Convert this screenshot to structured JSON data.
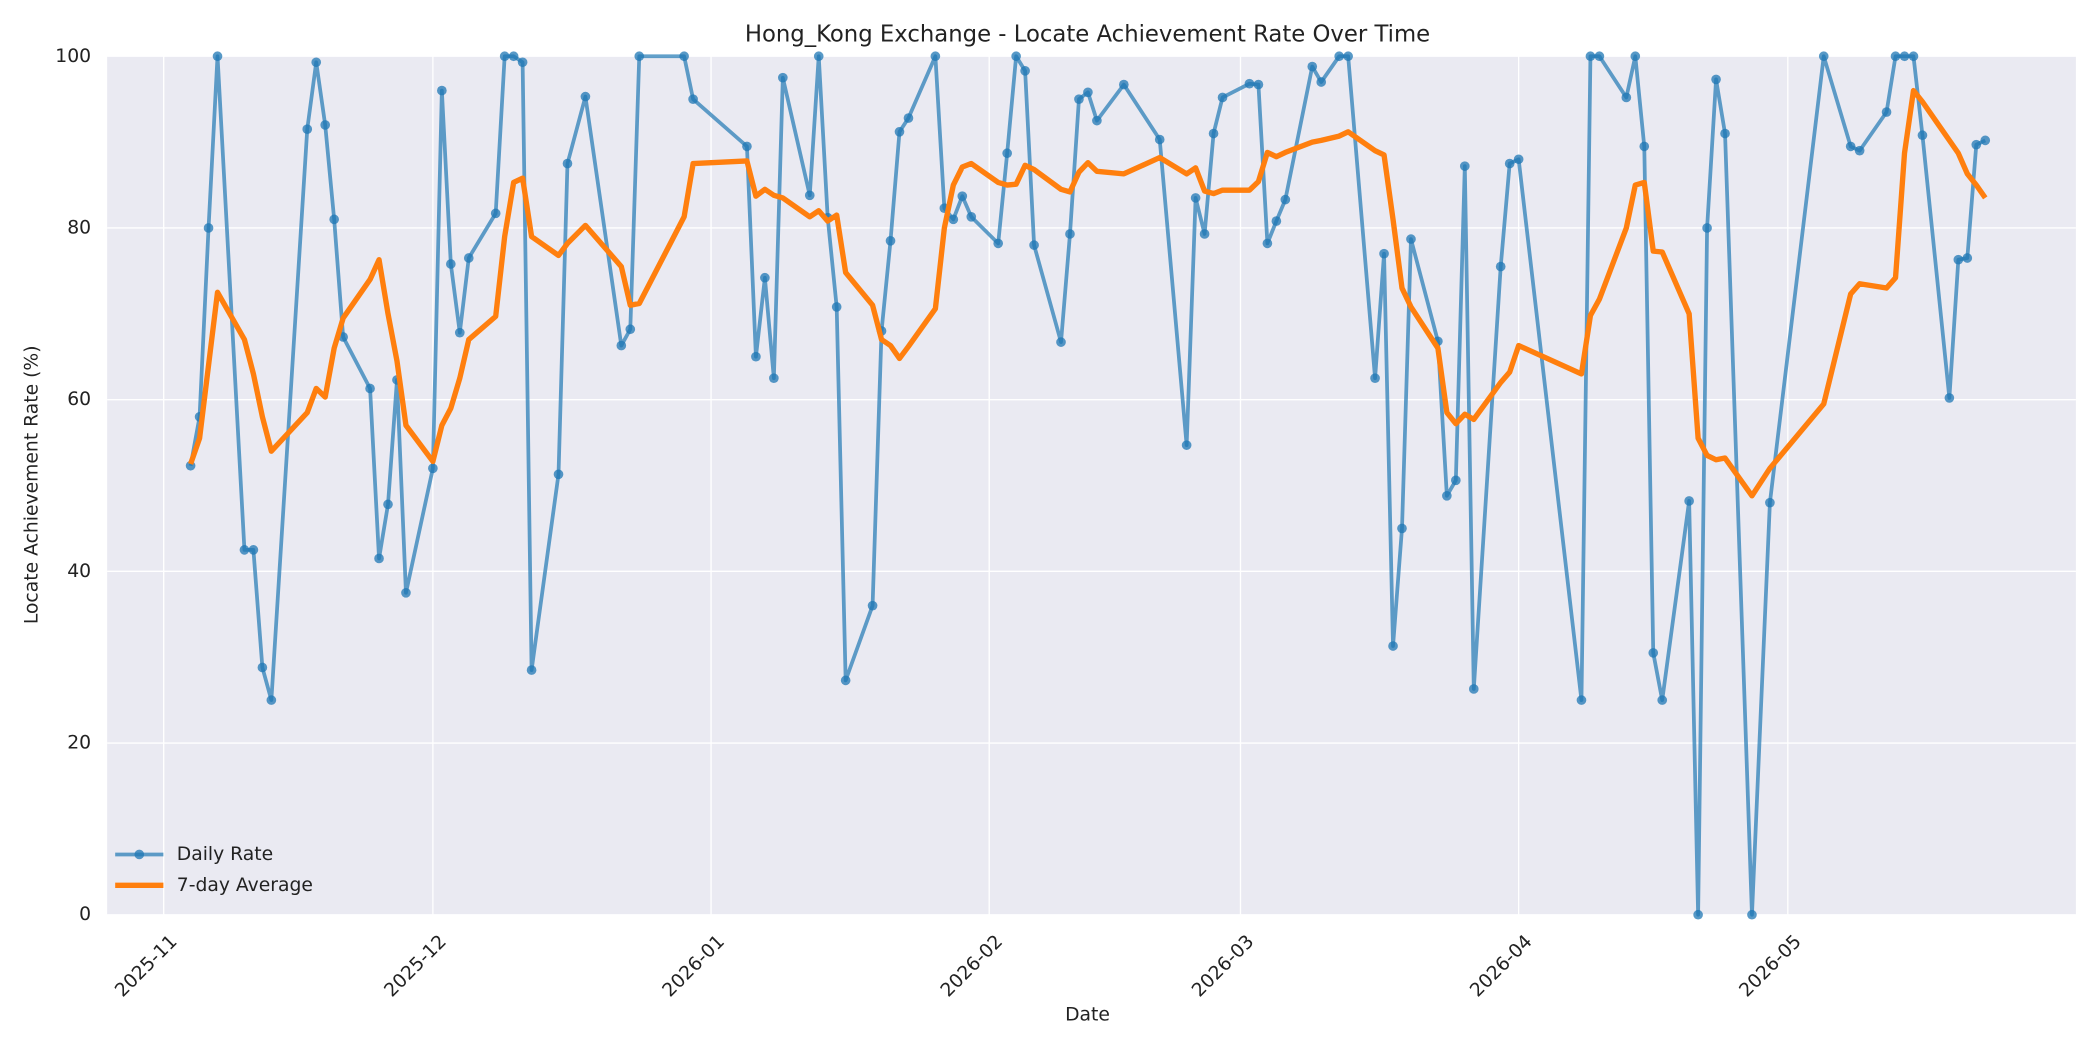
{
  "chart_data": {
    "type": "line",
    "title": "Hong_Kong Exchange - Locate Achievement Rate Over Time",
    "xlabel": "Date",
    "ylabel": "Locate Achievement Rate (%)",
    "x": [
      3,
      4,
      5,
      6,
      9,
      10,
      11,
      12,
      16,
      17,
      18,
      19,
      20,
      23,
      24,
      25,
      26,
      27,
      30,
      31,
      32,
      33,
      34,
      37,
      38,
      39,
      40,
      41,
      44,
      45,
      47,
      51,
      52,
      53,
      58,
      59,
      65,
      66,
      67,
      68,
      69,
      72,
      73,
      74,
      75,
      76,
      79,
      80,
      81,
      82,
      83,
      86,
      87,
      88,
      89,
      90,
      93,
      94,
      95,
      96,
      97,
      100,
      101,
      102,
      103,
      104,
      107,
      111,
      114,
      115,
      116,
      117,
      118,
      121,
      122,
      123,
      124,
      125,
      128,
      129,
      131,
      132,
      135,
      136,
      137,
      138,
      139,
      142,
      143,
      144,
      145,
      146,
      149,
      150,
      151,
      158,
      159,
      160,
      163,
      164,
      165,
      166,
      167,
      170,
      171,
      172,
      173,
      174,
      177,
      179,
      185,
      188,
      189,
      192,
      193,
      194,
      195,
      196,
      199,
      200,
      201,
      202,
      203
    ],
    "series": [
      {
        "name": "Daily Rate",
        "color": "#1f77b4",
        "markers": true,
        "values": [
          52.3,
          58,
          80,
          100,
          42.5,
          42.5,
          28.8,
          25,
          91.5,
          99.3,
          92,
          81,
          67.3,
          61.3,
          41.5,
          47.8,
          62.3,
          37.5,
          52,
          96,
          75.8,
          67.8,
          76.5,
          81.7,
          100,
          100,
          99.3,
          28.5,
          51.3,
          87.5,
          95.3,
          66.3,
          68.2,
          100,
          100,
          95,
          89.5,
          65,
          74.2,
          62.5,
          97.5,
          83.8,
          100,
          81.2,
          70.8,
          27.3,
          36,
          68,
          78.5,
          91.2,
          92.8,
          100,
          82.3,
          81,
          83.7,
          81.3,
          78.2,
          88.7,
          100,
          98.3,
          78,
          66.7,
          79.3,
          95,
          95.8,
          92.5,
          96.7,
          90.3,
          54.7,
          83.5,
          79.3,
          91,
          95.2,
          96.8,
          96.7,
          78.2,
          80.8,
          83.3,
          98.8,
          97,
          100,
          100,
          62.5,
          77,
          31.3,
          45,
          78.7,
          66.8,
          48.8,
          50.6,
          87.2,
          26.3,
          75.5,
          87.5,
          88,
          25,
          100,
          100,
          95.2,
          100,
          89.5,
          30.5,
          25,
          48.2,
          0,
          80,
          97.3,
          91,
          0,
          48,
          100,
          89.5,
          89,
          93.5,
          100,
          100,
          100,
          90.8,
          60.2,
          76.3,
          76.5,
          89.7,
          90.2
        ]
      },
      {
        "name": "7-day Average",
        "color": "#ff7f0e",
        "markers": false,
        "values": [
          52.5,
          55.5,
          64,
          72.5,
          67,
          63,
          58,
          54,
          58.5,
          61.3,
          60.3,
          66,
          69.5,
          74,
          76.3,
          70,
          64.5,
          57,
          52.8,
          57,
          59,
          62.5,
          67,
          69.7,
          79,
          85.3,
          85.8,
          79,
          76.8,
          78.2,
          80.3,
          75.5,
          71,
          71.2,
          81.3,
          87.5,
          87.8,
          83.7,
          84.5,
          83.8,
          83.5,
          81.3,
          82,
          80.8,
          81.5,
          74.8,
          71,
          67,
          66.3,
          64.8,
          66.2,
          70.6,
          80,
          85,
          87.1,
          87.5,
          85.3,
          85,
          85.1,
          87.3,
          86.8,
          84.5,
          84.2,
          86.5,
          87.6,
          86.6,
          86.3,
          88.2,
          86.3,
          87,
          84.3,
          84,
          84.4,
          84.4,
          85.4,
          88.8,
          88.3,
          88.8,
          90,
          90.2,
          90.7,
          91.2,
          89,
          88.5,
          81,
          73,
          70.8,
          66,
          58.5,
          57.2,
          58.3,
          57.7,
          62,
          63.2,
          66.3,
          63,
          69.8,
          71.7,
          80,
          85,
          85.3,
          77.3,
          77.2,
          70,
          55.5,
          53.5,
          53,
          53.2,
          48.8,
          52,
          59.5,
          72.3,
          73.5,
          73,
          74.2,
          88.7,
          96,
          94.7,
          90.2,
          88.7,
          86.3,
          85,
          83.5
        ]
      }
    ],
    "xlim": [
      -6.3,
      213.1
    ],
    "xticks": [
      {
        "value": 0,
        "label": "2025-11"
      },
      {
        "value": 30,
        "label": "2025-12"
      },
      {
        "value": 61,
        "label": "2026-01"
      },
      {
        "value": 92,
        "label": "2026-02"
      },
      {
        "value": 120,
        "label": "2026-03"
      },
      {
        "value": 151,
        "label": "2026-04"
      },
      {
        "value": 181,
        "label": "2026-05"
      }
    ],
    "ylim": [
      0,
      100
    ],
    "yticks": [
      0,
      20,
      40,
      60,
      80,
      100
    ],
    "grid": true,
    "legend": "lower left"
  }
}
